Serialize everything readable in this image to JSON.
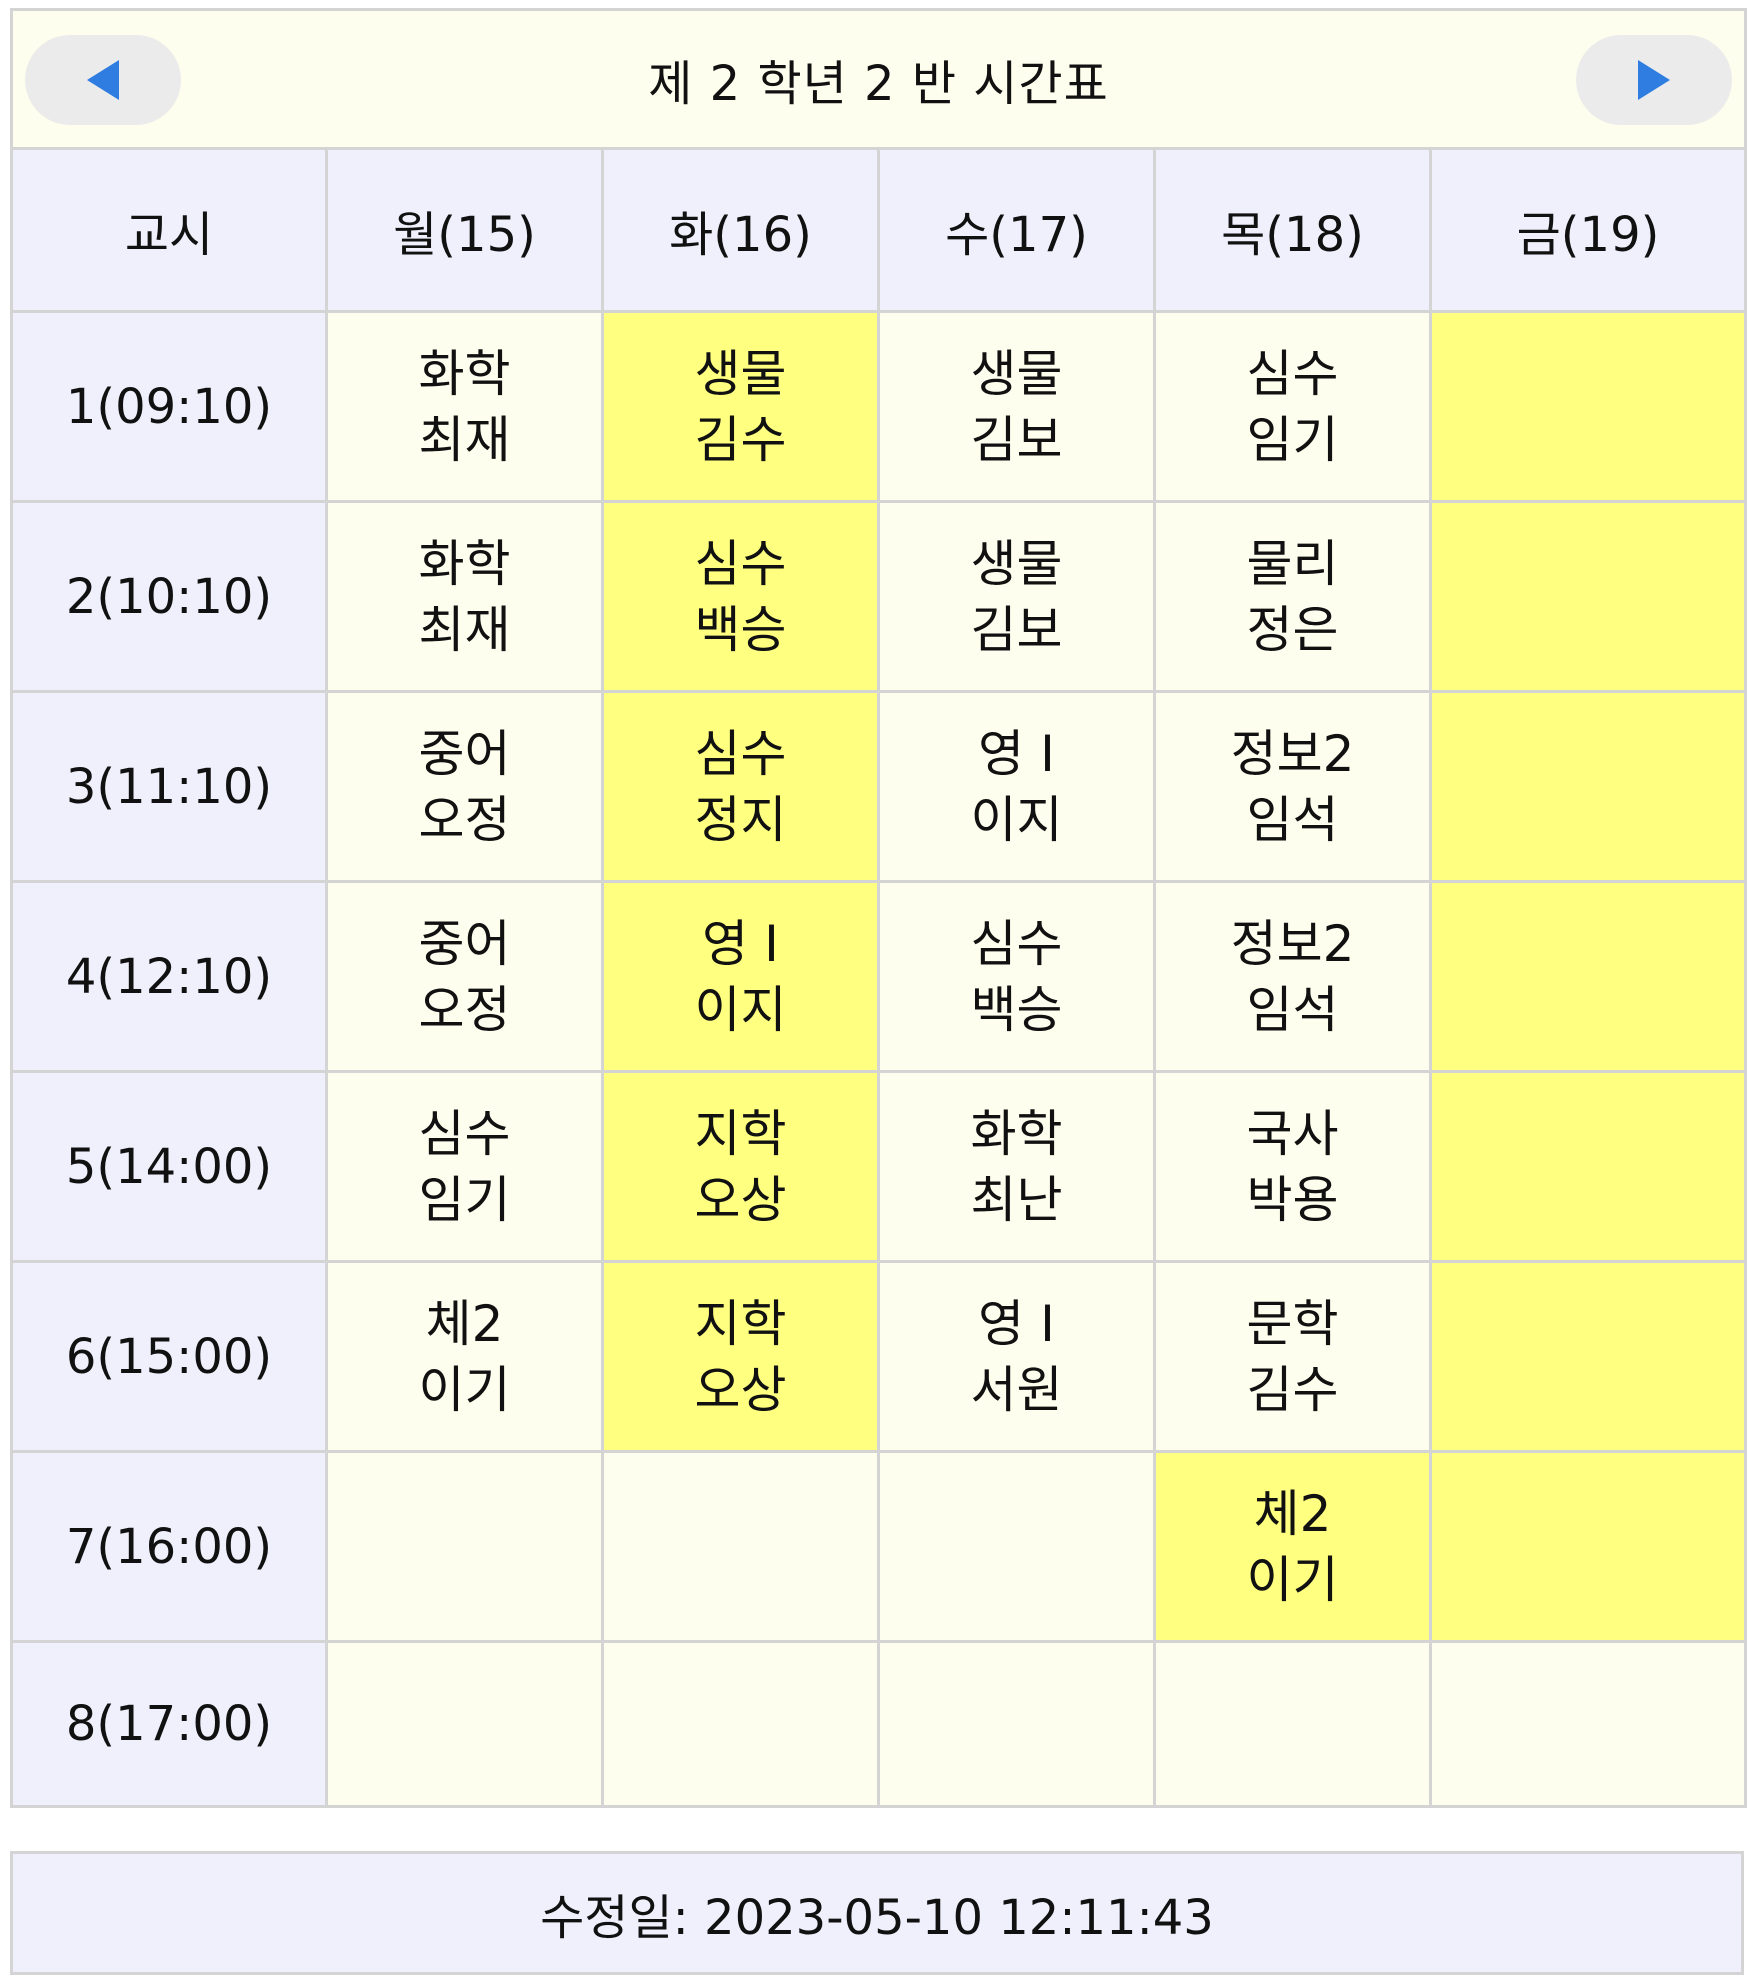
{
  "header": {
    "title": "제 2 학년 2 반 시간표"
  },
  "columns": {
    "period_label": "교시",
    "days": [
      "월(15)",
      "화(16)",
      "수(17)",
      "목(18)",
      "금(19)"
    ]
  },
  "rows": [
    {
      "period": "1(09:10)",
      "cells": [
        {
          "subject": "화학",
          "teacher": "최재",
          "highlight": false
        },
        {
          "subject": "생물",
          "teacher": "김수",
          "highlight": true
        },
        {
          "subject": "생물",
          "teacher": "김보",
          "highlight": false
        },
        {
          "subject": "심수",
          "teacher": "임기",
          "highlight": false
        },
        {
          "subject": "",
          "teacher": "",
          "highlight": true
        }
      ]
    },
    {
      "period": "2(10:10)",
      "cells": [
        {
          "subject": "화학",
          "teacher": "최재",
          "highlight": false
        },
        {
          "subject": "심수",
          "teacher": "백승",
          "highlight": true
        },
        {
          "subject": "생물",
          "teacher": "김보",
          "highlight": false
        },
        {
          "subject": "물리",
          "teacher": "정은",
          "highlight": false
        },
        {
          "subject": "",
          "teacher": "",
          "highlight": true
        }
      ]
    },
    {
      "period": "3(11:10)",
      "cells": [
        {
          "subject": "중어",
          "teacher": "오정",
          "highlight": false
        },
        {
          "subject": "심수",
          "teacher": "정지",
          "highlight": true
        },
        {
          "subject": "영 I",
          "teacher": "이지",
          "highlight": false
        },
        {
          "subject": "정보2",
          "teacher": "임석",
          "highlight": false
        },
        {
          "subject": "",
          "teacher": "",
          "highlight": true
        }
      ]
    },
    {
      "period": "4(12:10)",
      "cells": [
        {
          "subject": "중어",
          "teacher": "오정",
          "highlight": false
        },
        {
          "subject": "영 I",
          "teacher": "이지",
          "highlight": true
        },
        {
          "subject": "심수",
          "teacher": "백승",
          "highlight": false
        },
        {
          "subject": "정보2",
          "teacher": "임석",
          "highlight": false
        },
        {
          "subject": "",
          "teacher": "",
          "highlight": true
        }
      ]
    },
    {
      "period": "5(14:00)",
      "cells": [
        {
          "subject": "심수",
          "teacher": "임기",
          "highlight": false
        },
        {
          "subject": "지학",
          "teacher": "오상",
          "highlight": true
        },
        {
          "subject": "화학",
          "teacher": "최난",
          "highlight": false
        },
        {
          "subject": "국사",
          "teacher": "박용",
          "highlight": false
        },
        {
          "subject": "",
          "teacher": "",
          "highlight": true
        }
      ]
    },
    {
      "period": "6(15:00)",
      "cells": [
        {
          "subject": "체2",
          "teacher": "이기",
          "highlight": false
        },
        {
          "subject": "지학",
          "teacher": "오상",
          "highlight": true
        },
        {
          "subject": "영 I",
          "teacher": "서원",
          "highlight": false
        },
        {
          "subject": "문학",
          "teacher": "김수",
          "highlight": false
        },
        {
          "subject": "",
          "teacher": "",
          "highlight": true
        }
      ]
    },
    {
      "period": "7(16:00)",
      "cells": [
        {
          "subject": "",
          "teacher": "",
          "highlight": false
        },
        {
          "subject": "",
          "teacher": "",
          "highlight": false
        },
        {
          "subject": "",
          "teacher": "",
          "highlight": false
        },
        {
          "subject": "체2",
          "teacher": "이기",
          "highlight": true
        },
        {
          "subject": "",
          "teacher": "",
          "highlight": true
        }
      ]
    },
    {
      "period": "8(17:00)",
      "cells": [
        {
          "subject": "",
          "teacher": "",
          "highlight": false
        },
        {
          "subject": "",
          "teacher": "",
          "highlight": false
        },
        {
          "subject": "",
          "teacher": "",
          "highlight": false
        },
        {
          "subject": "",
          "teacher": "",
          "highlight": false
        },
        {
          "subject": "",
          "teacher": "",
          "highlight": false
        }
      ]
    }
  ],
  "footer": {
    "modified": "수정일: 2023-05-10 12:11:43"
  },
  "colors": {
    "header_bg": "#f0f0fc",
    "cell_bg": "#fefeee",
    "highlight_bg": "#ffff80",
    "arrow": "#2f7de1",
    "border": "#d4d4d4"
  },
  "icons": {
    "prev": "triangle-left-icon",
    "next": "triangle-right-icon"
  }
}
